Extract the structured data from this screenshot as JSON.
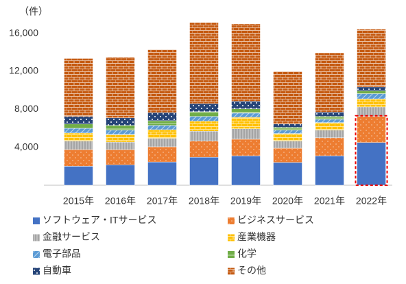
{
  "chart_data": {
    "type": "stacked_bar",
    "y_label": "（件）",
    "categories": [
      "2015年",
      "2016年",
      "2017年",
      "2018年",
      "2019年",
      "2020年",
      "2021年",
      "2022年"
    ],
    "ylim": [
      0,
      18000
    ],
    "yticks": [
      {
        "value": 4000,
        "label": "4,000"
      },
      {
        "value": 8000,
        "label": "8,000"
      },
      {
        "value": 12000,
        "label": "12,000"
      },
      {
        "value": 16000,
        "label": "16,000"
      }
    ],
    "series": [
      {
        "name": "ソフトウェア・ITサービス",
        "color": "#4472c4",
        "values": [
          2000,
          2150,
          2450,
          2950,
          3100,
          2400,
          3100,
          4500
        ]
      },
      {
        "name": "ビジネスサービス",
        "color": "#ed7d31",
        "values": [
          1750,
          1600,
          1600,
          1700,
          1750,
          1500,
          1900,
          2750
        ]
      },
      {
        "name": "金融サービス",
        "color": "#a5a5a5",
        "values": [
          900,
          800,
          900,
          1050,
          1100,
          750,
          800,
          1000
        ]
      },
      {
        "name": "産業機器",
        "color": "#ffc000",
        "values": [
          850,
          800,
          900,
          1050,
          1200,
          800,
          800,
          850
        ]
      },
      {
        "name": "電子部品",
        "color": "#5b9bd5",
        "values": [
          500,
          450,
          450,
          500,
          450,
          350,
          350,
          550
        ]
      },
      {
        "name": "化学",
        "color": "#70ad47",
        "values": [
          450,
          500,
          500,
          500,
          450,
          300,
          300,
          300
        ]
      },
      {
        "name": "自動車",
        "color": "#264478",
        "values": [
          800,
          800,
          850,
          850,
          800,
          350,
          450,
          400
        ]
      },
      {
        "name": "その他",
        "color": "#c55a11",
        "values": [
          6100,
          6400,
          6650,
          8550,
          8150,
          5550,
          6250,
          6100
        ]
      }
    ]
  }
}
